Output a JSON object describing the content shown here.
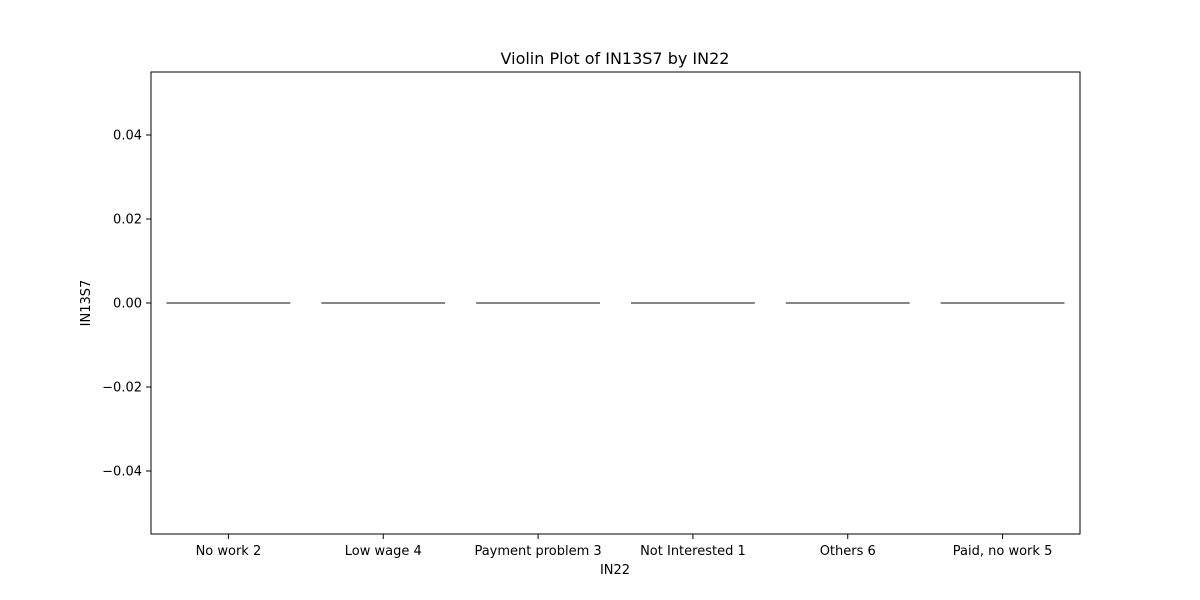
{
  "chart_data": {
    "type": "violin",
    "title": "Violin Plot of IN13S7 by IN22",
    "xlabel": "IN22",
    "ylabel": "IN13S7",
    "categories": [
      "No work 2",
      "Low wage 4",
      "Payment problem 3",
      "Not Interested 1",
      "Others 6",
      "Paid, no work 5"
    ],
    "values": [
      0.0,
      0.0,
      0.0,
      0.0,
      0.0,
      0.0
    ],
    "ylim": [
      -0.055,
      0.055
    ],
    "yticks": [
      -0.04,
      -0.02,
      0.0,
      0.02,
      0.04
    ],
    "ytick_labels": [
      "−0.04",
      "−0.02",
      "0.00",
      "0.02",
      "0.04"
    ],
    "grid": false,
    "colors": {
      "violin_line": "#3d3d3d",
      "axis": "#000000",
      "background": "#ffffff"
    }
  }
}
